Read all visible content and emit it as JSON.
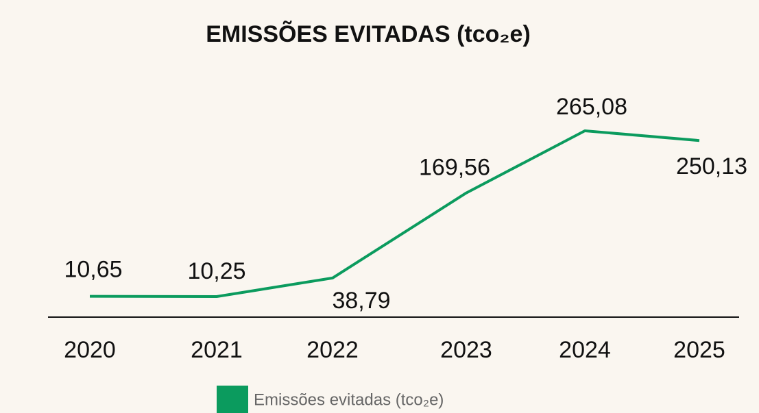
{
  "chart_data": {
    "type": "line",
    "title": "EMISSÕES EVITADAS (tco₂e)",
    "categories": [
      "2020",
      "2021",
      "2022",
      "2023",
      "2024",
      "2025"
    ],
    "series": [
      {
        "name": "Emissões evitadas (tco₂e)",
        "color": "#0b9b5e",
        "values": [
          10.65,
          10.25,
          38.79,
          169.56,
          265.08,
          250.13
        ],
        "value_labels": [
          "10,65",
          "10,25",
          "38,79",
          "169,56",
          "265,08",
          "250,13"
        ]
      }
    ],
    "legend": "bottom"
  }
}
